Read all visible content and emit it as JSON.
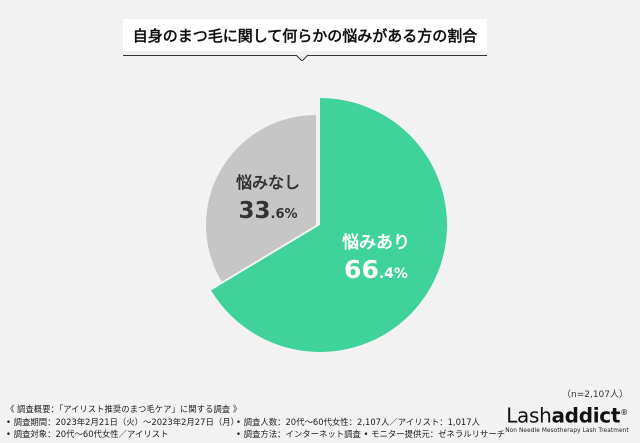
{
  "chart_data": {
    "type": "pie",
    "title": "自身のまつ毛に関して何らかの悩みがある方の割合",
    "slices": [
      {
        "label": "悩みあり",
        "value": 66.4,
        "int": "66",
        "dec": ".4",
        "unit": "%",
        "color": "#3fd29a"
      },
      {
        "label": "悩みなし",
        "value": 33.6,
        "int": "33",
        "dec": ".6",
        "unit": "%",
        "color": "#c6c6c6"
      }
    ],
    "sample_note": "（n=2,107人）"
  },
  "survey": {
    "heading": "《 調査概要：「アイリスト推奨のまつ毛ケア」に関する調査 》",
    "period": "• 調査期間：2023年2月21日（火）〜2023年2月27日（月）",
    "target": "• 調査対象：20代〜60代女性／アイリスト",
    "count": "• 調査人数：20代〜60代女性：2,107人／アイリスト：1,017人",
    "method": "• 調査方法：インターネット調査 • モニター提供元：ゼネラルリサーチ"
  },
  "brand": {
    "logo_light": "Lash",
    "logo_bold": "addict",
    "logo_mark": "®",
    "tagline": "Non Needle Mesotherapy Lash Treatment"
  }
}
